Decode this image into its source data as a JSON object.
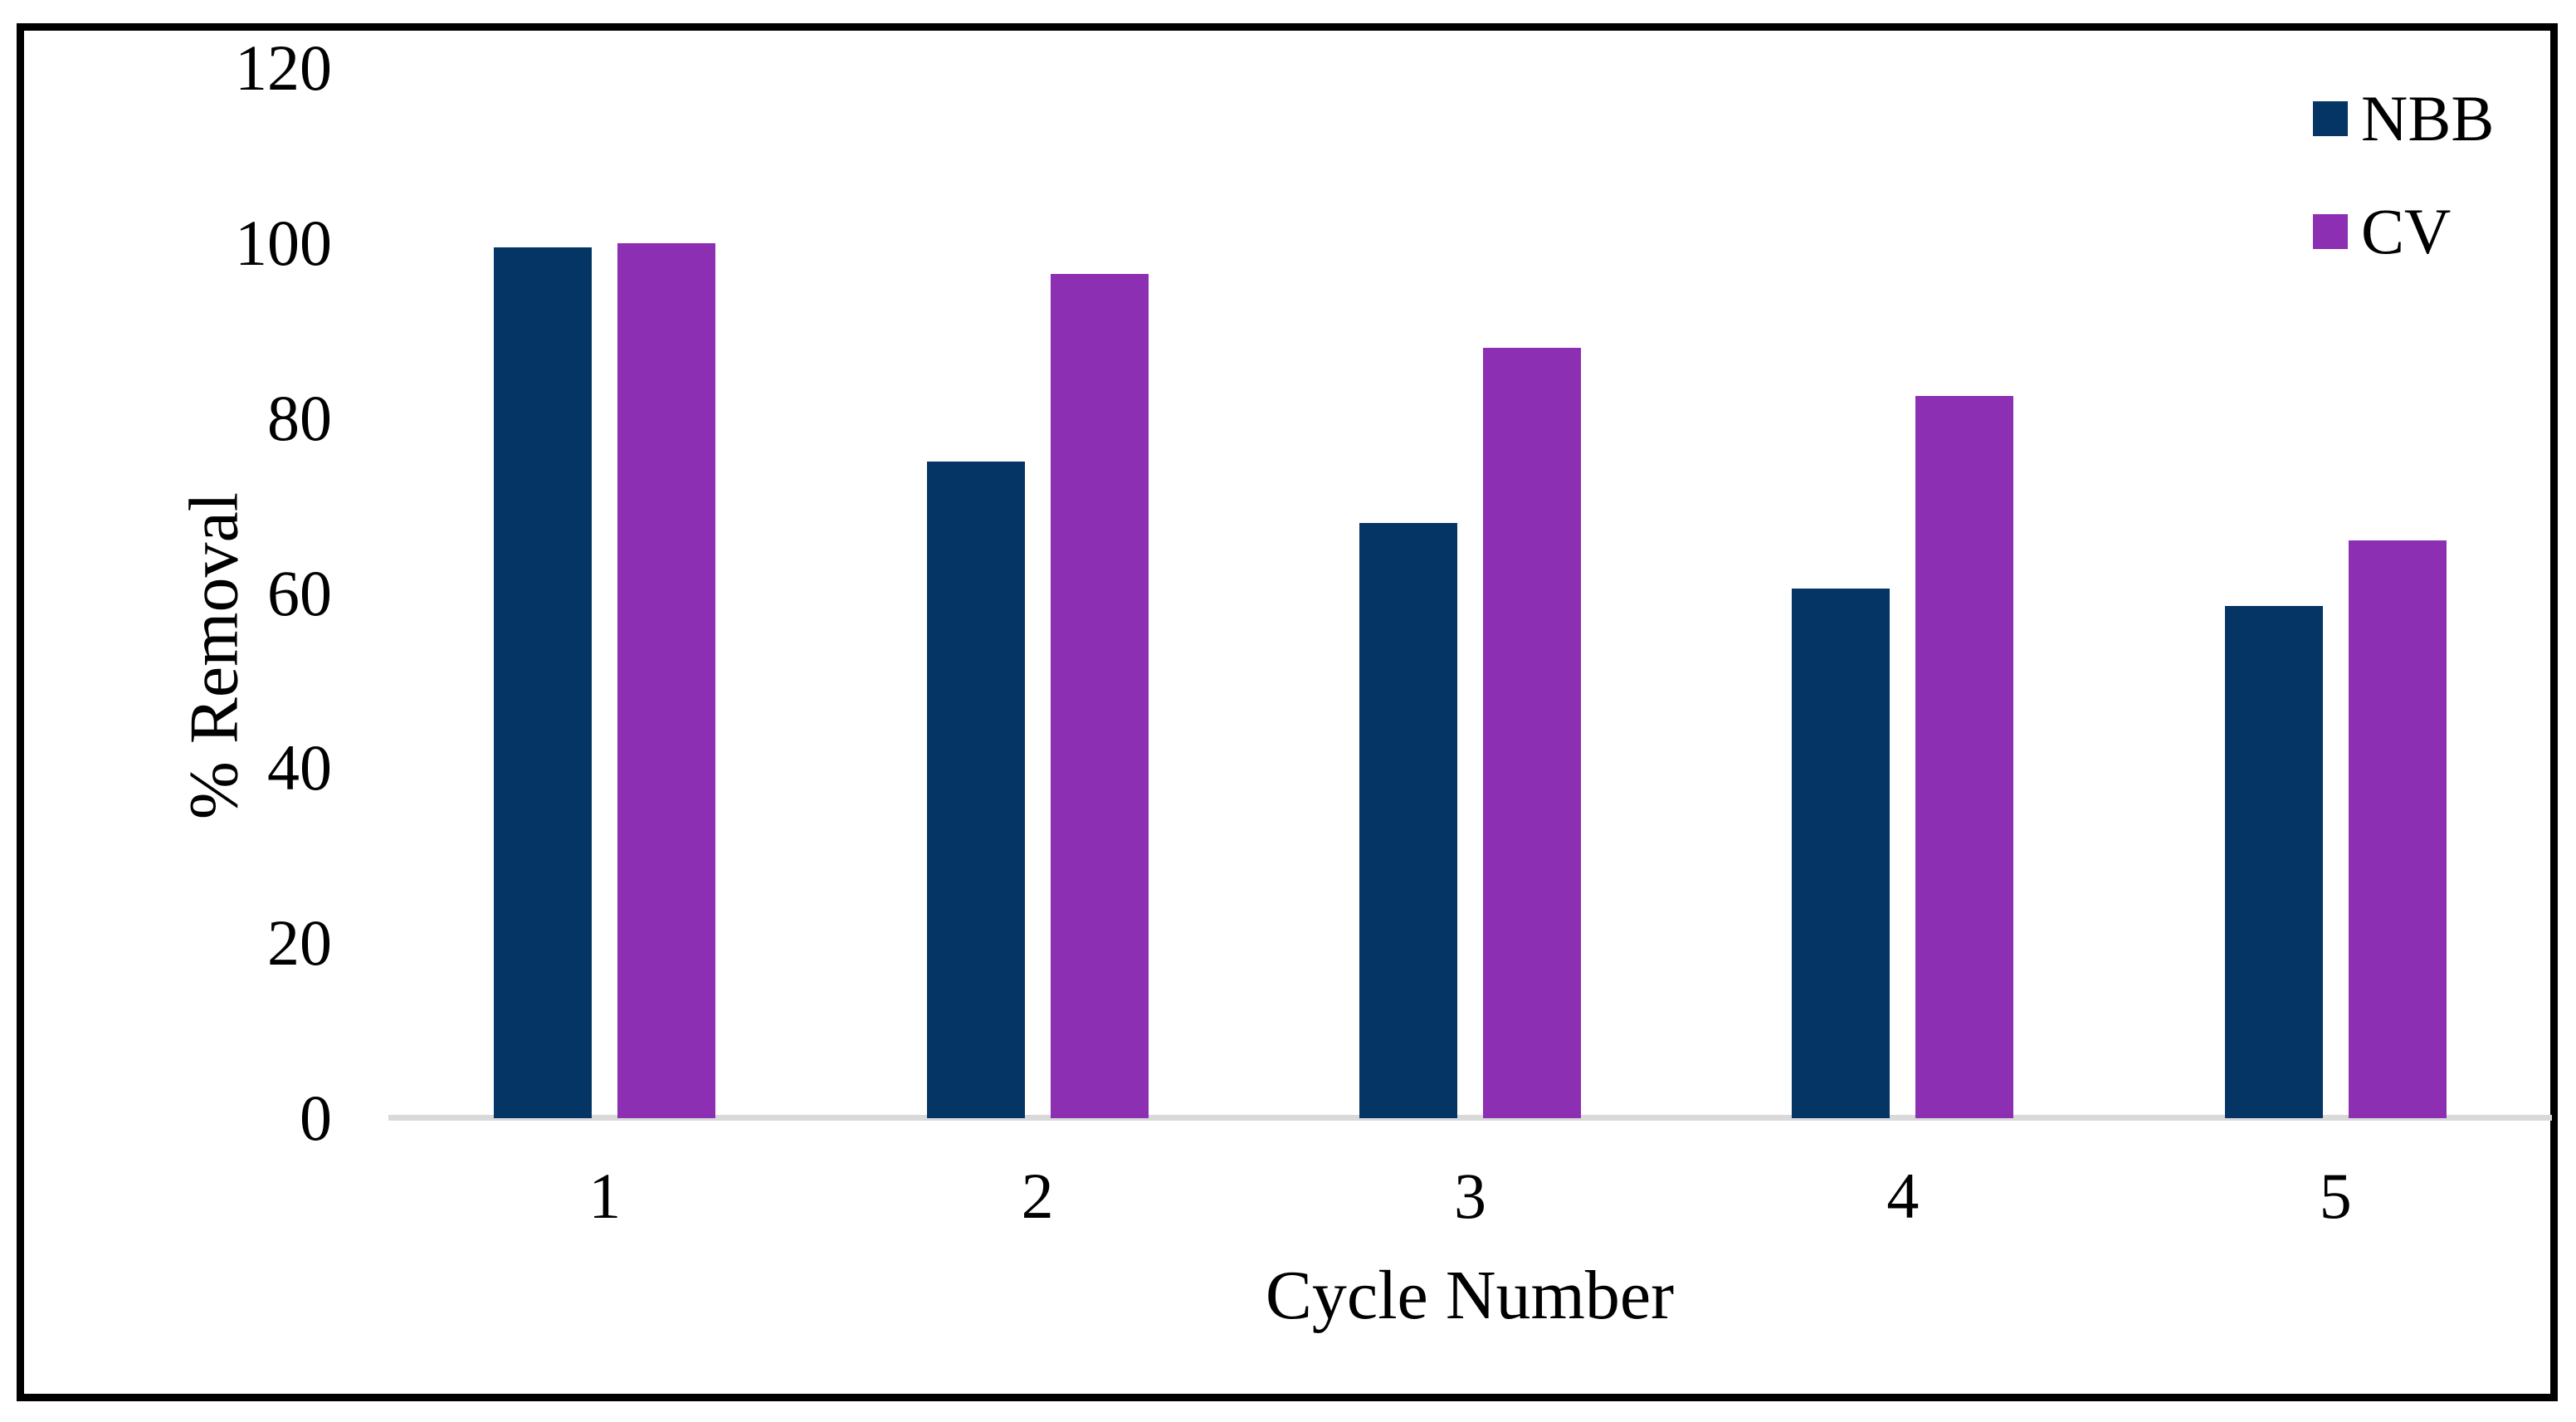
{
  "figure": {
    "background": "#FFFFFF",
    "border_color": "#000000"
  },
  "chart_data": {
    "type": "bar",
    "title": "",
    "xlabel": "Cycle Number",
    "ylabel": "% Removal",
    "categories": [
      "1",
      "2",
      "3",
      "4",
      "5"
    ],
    "series": [
      {
        "name": "NBB",
        "color": "#043564",
        "values": [
          99.5,
          75,
          68,
          60.5,
          58.5
        ]
      },
      {
        "name": "CV",
        "color": "#8C2FB2",
        "values": [
          100,
          96.5,
          88,
          82.5,
          66
        ]
      }
    ],
    "ylim": [
      0,
      120
    ],
    "yticks": [
      0,
      20,
      40,
      60,
      80,
      100,
      120
    ],
    "grid": "baseline only",
    "baseline_color": "#D9D9D9",
    "legend_position": "top-right"
  }
}
